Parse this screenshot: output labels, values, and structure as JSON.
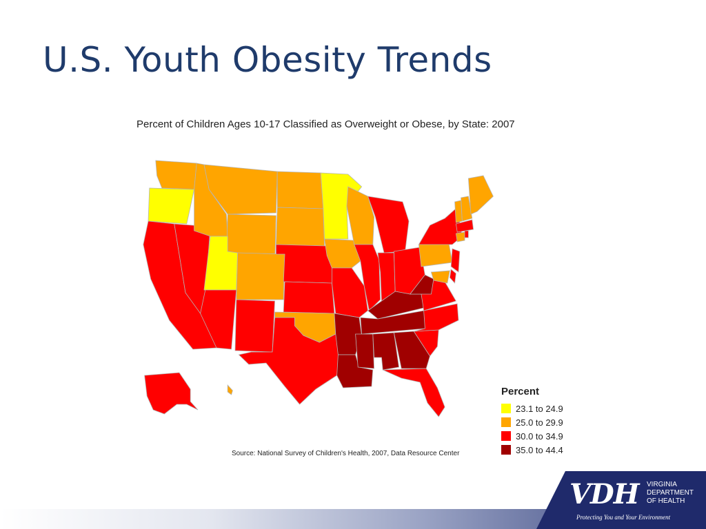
{
  "slide": {
    "title": "U.S. Youth Obesity Trends"
  },
  "map": {
    "title": "Percent of Children Ages 10-17 Classified as Overweight or Obese, by State: 2007",
    "source": "Source: National Survey of Children's Health, 2007, Data Resource Center",
    "legend": {
      "title": "Percent",
      "items": [
        {
          "label": "23.1 to 24.9",
          "color": "#ffff00"
        },
        {
          "label": "25.0 to 29.9",
          "color": "#ffa500"
        },
        {
          "label": "30.0 to 34.9",
          "color": "#ff0000"
        },
        {
          "label": "35.0 to 44.4",
          "color": "#a00000"
        }
      ]
    },
    "states": [
      {
        "name": "WA",
        "category": 1
      },
      {
        "name": "OR",
        "category": 0
      },
      {
        "name": "CA",
        "category": 2
      },
      {
        "name": "NV",
        "category": 2
      },
      {
        "name": "ID",
        "category": 1
      },
      {
        "name": "MT",
        "category": 1
      },
      {
        "name": "WY",
        "category": 1
      },
      {
        "name": "UT",
        "category": 0
      },
      {
        "name": "AZ",
        "category": 2
      },
      {
        "name": "CO",
        "category": 1
      },
      {
        "name": "NM",
        "category": 2
      },
      {
        "name": "ND",
        "category": 1
      },
      {
        "name": "SD",
        "category": 1
      },
      {
        "name": "NE",
        "category": 2
      },
      {
        "name": "KS",
        "category": 2
      },
      {
        "name": "OK",
        "category": 1
      },
      {
        "name": "TX",
        "category": 2
      },
      {
        "name": "MN",
        "category": 0
      },
      {
        "name": "IA",
        "category": 1
      },
      {
        "name": "MO",
        "category": 2
      },
      {
        "name": "AR",
        "category": 3
      },
      {
        "name": "LA",
        "category": 3
      },
      {
        "name": "WI",
        "category": 1
      },
      {
        "name": "IL",
        "category": 2
      },
      {
        "name": "MI",
        "category": 2
      },
      {
        "name": "IN",
        "category": 2
      },
      {
        "name": "OH",
        "category": 2
      },
      {
        "name": "KY",
        "category": 3
      },
      {
        "name": "TN",
        "category": 3
      },
      {
        "name": "MS",
        "category": 3
      },
      {
        "name": "AL",
        "category": 3
      },
      {
        "name": "GA",
        "category": 3
      },
      {
        "name": "FL",
        "category": 2
      },
      {
        "name": "SC",
        "category": 2
      },
      {
        "name": "NC",
        "category": 2
      },
      {
        "name": "VA",
        "category": 2
      },
      {
        "name": "WV",
        "category": 3
      },
      {
        "name": "PA",
        "category": 1
      },
      {
        "name": "NY",
        "category": 2
      },
      {
        "name": "NJ",
        "category": 2
      },
      {
        "name": "DE",
        "category": 2
      },
      {
        "name": "MD",
        "category": 1
      },
      {
        "name": "CT",
        "category": 1
      },
      {
        "name": "RI",
        "category": 2
      },
      {
        "name": "MA",
        "category": 2
      },
      {
        "name": "VT",
        "category": 1
      },
      {
        "name": "NH",
        "category": 1
      },
      {
        "name": "ME",
        "category": 1
      },
      {
        "name": "AK",
        "category": 2
      },
      {
        "name": "HI",
        "category": 1
      }
    ]
  },
  "logo": {
    "abbr": "VDH",
    "lines": [
      "VIRGINIA",
      "DEPARTMENT",
      "OF HEALTH"
    ],
    "tagline": "Protecting You and Your Environment"
  }
}
